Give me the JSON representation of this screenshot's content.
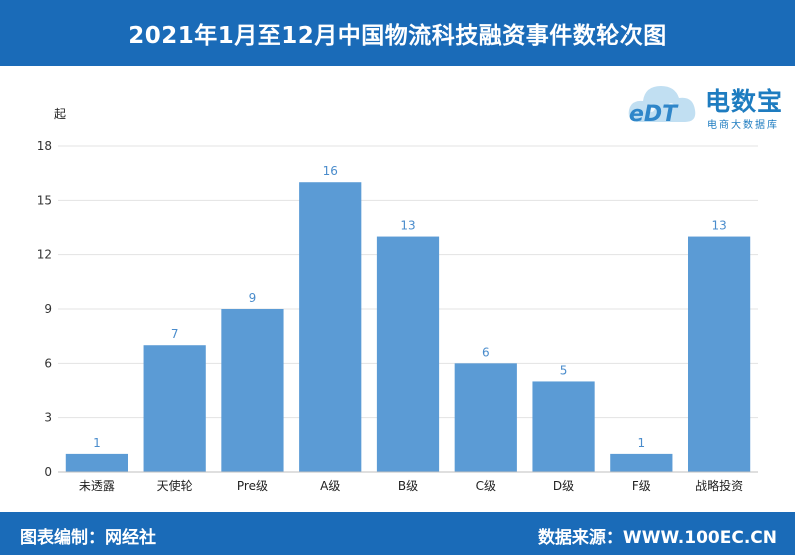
{
  "header": {
    "title": "2021年1月至12月中国物流科技融资事件数轮次图"
  },
  "footer": {
    "left": "图表编制：网经社",
    "right": "数据来源：WWW.100EC.CN"
  },
  "logo": {
    "name": "电数宝",
    "tagline": "电商大数据库",
    "mark": "eDT"
  },
  "chart_data": {
    "type": "bar",
    "categories": [
      "未透露",
      "天使轮",
      "Pre级",
      "A级",
      "B级",
      "C级",
      "D级",
      "F级",
      "战略投资"
    ],
    "values": [
      1,
      7,
      9,
      16,
      13,
      6,
      5,
      1,
      13
    ],
    "ylabel": "起",
    "ylim": [
      0,
      18
    ],
    "yticks": [
      0,
      3,
      6,
      9,
      12,
      15,
      18
    ],
    "grid": true,
    "bar_color": "#5b9bd5",
    "label_color": "#4a8ccc"
  }
}
